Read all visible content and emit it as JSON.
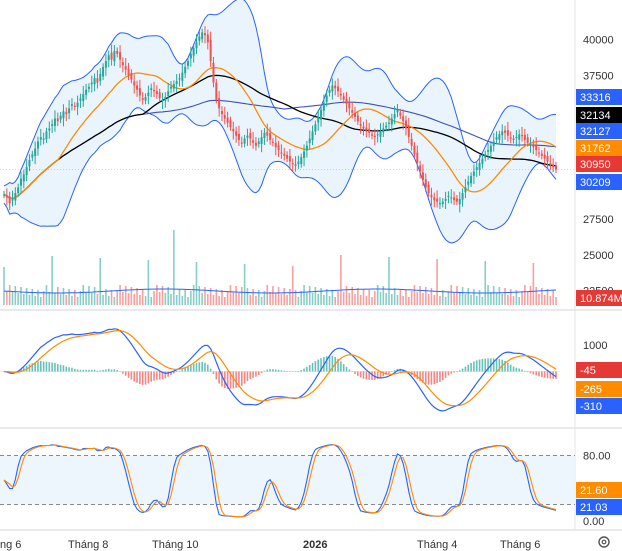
{
  "chart_data": [
    {
      "type": "candlestick",
      "panel": "price",
      "y_ticks": [
        "40000",
        "37500",
        "35000",
        "32500",
        "30000",
        "27500",
        "25000",
        "22500"
      ],
      "ylim": [
        21500,
        41500
      ],
      "series": [
        {
          "name": "Close",
          "values": [
            29200,
            29000,
            28600,
            28900,
            29300,
            29700,
            30300,
            30600,
            31100,
            31600,
            32000,
            32400,
            32900,
            33200,
            33100,
            33600,
            33800,
            34100,
            34500,
            34300,
            34700,
            35000,
            34800,
            35200,
            35500,
            35300,
            35600,
            35900,
            36200,
            36500,
            36700,
            37000,
            37300,
            37000,
            37600,
            38100,
            38500,
            38900,
            38600,
            39200,
            39000,
            38600,
            38200,
            37900,
            37500,
            37200,
            36800,
            36500,
            36100,
            35800,
            36000,
            36300,
            36600,
            36400,
            36200,
            35900,
            35800,
            36000,
            36400,
            36700,
            36900,
            37100,
            37300,
            37700,
            38100,
            38500,
            39000,
            39400,
            39800,
            40200,
            40500,
            40300,
            39800,
            38500,
            37000,
            35800,
            35200,
            34800,
            34500,
            34200,
            33900,
            33600,
            33300,
            33000,
            32800,
            33100,
            33300,
            33100,
            32800,
            32600,
            32900,
            33200,
            33500,
            33300,
            33000,
            32800,
            32500,
            32300,
            32100,
            31900,
            31700,
            31500,
            31300,
            31200,
            31500,
            31800,
            32200,
            32600,
            33100,
            33600,
            34100,
            34600,
            35100,
            35600,
            36100,
            36500,
            36800,
            36600,
            36400,
            36100,
            35800,
            35500,
            35200,
            34900,
            34600,
            34300,
            34000,
            33800,
            33600,
            33500,
            33300,
            33200,
            33400,
            33600,
            33800,
            34000,
            34200,
            34500,
            34800,
            35100,
            34700,
            34300,
            33800,
            33200,
            32600,
            32000,
            31400,
            30800,
            30200,
            29700,
            29300,
            29000,
            28800,
            28700,
            28600,
            28700,
            28900,
            29100,
            29000,
            28800,
            28700,
            28900,
            29300,
            29700,
            30100,
            30500,
            30800,
            31100,
            31400,
            31700,
            32000,
            32300,
            32600,
            32900,
            33200,
            33400,
            33600,
            33500,
            33300,
            33100,
            33000,
            33200,
            33400,
            33300,
            33000,
            32800,
            32700,
            32500,
            32300,
            32100,
            31900,
            31700,
            31500,
            31300,
            31100,
            30950
          ]
        },
        {
          "name": "BB Upper",
          "values": [
            33316
          ]
        },
        {
          "name": "MA Black",
          "values": [
            32134
          ]
        },
        {
          "name": "MA Blue",
          "values": [
            32127
          ]
        },
        {
          "name": "MA Orange",
          "values": [
            31762
          ]
        },
        {
          "name": "BB Lower",
          "values": [
            30209
          ]
        }
      ],
      "last_price": "30950",
      "tags": [
        {
          "label": "33316",
          "color": "#2962ff"
        },
        {
          "label": "32134",
          "color": "#000000"
        },
        {
          "label": "32127",
          "color": "#2962ff"
        },
        {
          "label": "31762",
          "color": "#ff8c00"
        },
        {
          "label": "30950",
          "color": "#e53935"
        },
        {
          "label": "30209",
          "color": "#2962ff"
        }
      ]
    },
    {
      "type": "bar",
      "panel": "volume",
      "tag": {
        "label": "10.874M",
        "color": "#e53935"
      }
    },
    {
      "type": "line",
      "panel": "macd",
      "y_ticks": [
        "1000",
        "0",
        "-1000"
      ],
      "series_names": [
        "MACD",
        "Signal",
        "Histogram"
      ],
      "tags": [
        {
          "label": "-45",
          "color": "#e53935"
        },
        {
          "label": "-265",
          "color": "#ff8c00"
        },
        {
          "label": "-310",
          "color": "#2962ff"
        }
      ]
    },
    {
      "type": "line",
      "panel": "stochastic",
      "y_ticks": [
        "80.00",
        "0.00"
      ],
      "band": [
        20,
        80
      ],
      "tags": [
        {
          "label": "21.60",
          "color": "#ff8c00"
        },
        {
          "label": "21.03",
          "color": "#2962ff"
        }
      ]
    }
  ],
  "x_axis": {
    "labels": [
      {
        "text": "ng 6",
        "bold": false
      },
      {
        "text": "Tháng 8",
        "bold": false
      },
      {
        "text": "Tháng 10",
        "bold": false
      },
      {
        "text": "2026",
        "bold": true
      },
      {
        "text": "Tháng 4",
        "bold": false
      },
      {
        "text": "Tháng 6",
        "bold": false
      }
    ]
  },
  "colors": {
    "up": "#26a69a",
    "down": "#ef5350",
    "bb_fill": "#e3f0fb",
    "bb_line": "#2962ff",
    "ma_orange": "#ff8c00",
    "ma_black": "#000000",
    "ma_blue": "#3f51b5",
    "grid": "#e0e3eb",
    "band": "#e8f2fd"
  },
  "icons": {
    "settings": "gear-icon"
  }
}
